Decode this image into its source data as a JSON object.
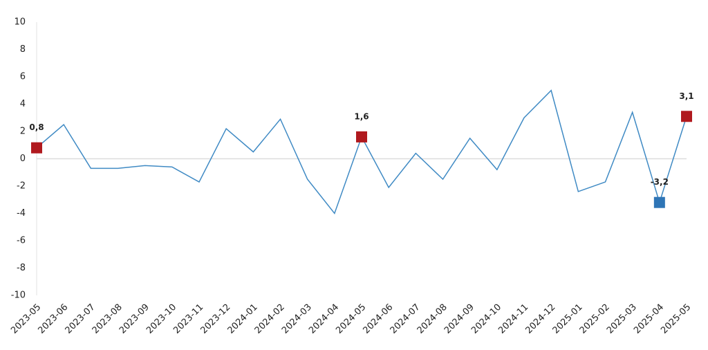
{
  "chart_data": {
    "type": "line",
    "categories": [
      "2023-05",
      "2023-06",
      "2023-07",
      "2023-08",
      "2023-09",
      "2023-10",
      "2023-11",
      "2023-12",
      "2024-01",
      "2024-02",
      "2024-03",
      "2024-04",
      "2024-05",
      "2024-06",
      "2024-07",
      "2024-08",
      "2024-09",
      "2024-10",
      "2024-11",
      "2024-12",
      "2025-01",
      "2025-02",
      "2025-03",
      "2025-04",
      "2025-05"
    ],
    "series": [
      {
        "color": "#3f8ac4",
        "values": [
          0.8,
          2.5,
          -0.7,
          -0.7,
          -0.5,
          -0.6,
          -1.7,
          2.2,
          0.5,
          2.9,
          -1.5,
          -4.0,
          1.6,
          -2.1,
          0.4,
          -1.5,
          1.5,
          -0.8,
          3.0,
          5.0,
          -2.4,
          -1.7,
          3.4,
          -3.2,
          3.1
        ],
        "value_labels": [
          "0,8",
          null,
          null,
          null,
          null,
          null,
          null,
          null,
          null,
          null,
          null,
          null,
          "1,6",
          null,
          null,
          null,
          null,
          null,
          null,
          null,
          null,
          null,
          null,
          "-3,2",
          "3,1"
        ],
        "marker_colors": [
          "#b0191e",
          null,
          null,
          null,
          null,
          null,
          null,
          null,
          null,
          null,
          null,
          null,
          "#b0191e",
          null,
          null,
          null,
          null,
          null,
          null,
          null,
          null,
          null,
          null,
          "#2e75b6",
          "#b0191e"
        ]
      }
    ],
    "ylim": [
      -10,
      10
    ],
    "yticks": [
      -10,
      -8,
      -6,
      -4,
      -2,
      0,
      2,
      4,
      6,
      8,
      10
    ],
    "grid": false
  }
}
